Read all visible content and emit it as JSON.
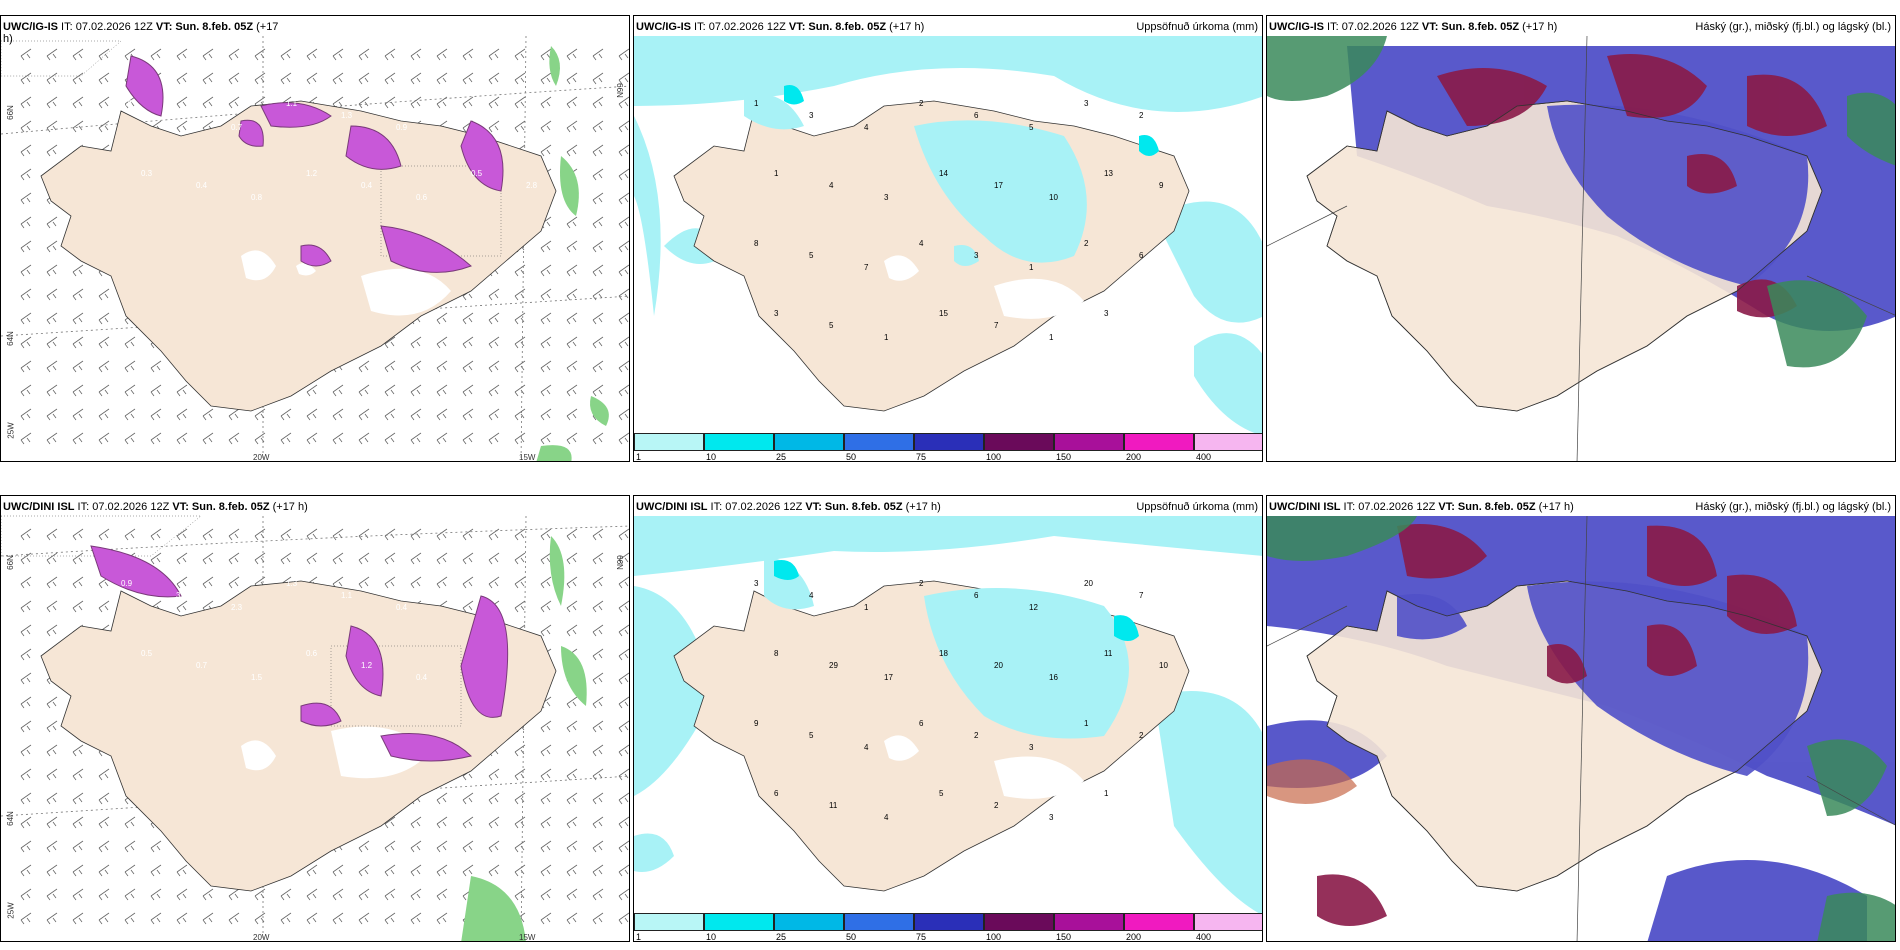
{
  "panels": {
    "top_left": {
      "title_model": "UWC/IG-IS",
      "title_rest": " IT: 07.02.2026 12Z ",
      "title_vt": "VT: Sun. 8.feb. 05Z",
      "title_lead": " (+17",
      "title_wrap": "h)",
      "axis_labels": {
        "lat_66_left": "66N",
        "lat_66_right": "66N",
        "lat_64_left": "64N",
        "lon_25": "25W",
        "lon_20": "20W",
        "lon_15": "15W"
      },
      "values": [
        "0.6",
        "0.9",
        "0.7",
        "1.1",
        "1.3",
        "0.9",
        "0.4",
        "0.5",
        "0.3",
        "0.4",
        "0.8",
        "1.2",
        "0.4",
        "0.6",
        "0.5",
        "2.8"
      ]
    },
    "top_middle": {
      "title_model": "UWC/IG-IS",
      "title_rest": " IT: 07.02.2026 12Z ",
      "title_vt": "VT: Sun. 8.feb. 05Z",
      "title_lead": " (+17 h)",
      "title_right": "Uppsöfnuð úrkoma (mm)",
      "values": [
        "1",
        "3",
        "4",
        "2",
        "6",
        "5",
        "3",
        "2",
        "1",
        "4",
        "3",
        "14",
        "17",
        "10",
        "13",
        "9",
        "8",
        "5",
        "7",
        "4",
        "3",
        "1",
        "2",
        "6",
        "3",
        "5",
        "1",
        "15",
        "7",
        "1",
        "3"
      ]
    },
    "top_right": {
      "title_model": "UWC/IG-IS",
      "title_rest": " IT: 07.02.2026 12Z ",
      "title_vt": "VT: Sun. 8.feb. 05Z",
      "title_lead": " (+17 h)",
      "title_right": "Háský (gr.), miðský (fj.bl.) og lágský (bl.)"
    },
    "bottom_left": {
      "title_model": "UWC/DINI ISL",
      "title_rest": " IT: 07.02.2026 12Z ",
      "title_vt": "VT: Sun. 8.feb. 05Z",
      "title_lead": " (+17 h)",
      "axis_labels": {
        "lat_66_left": "66N",
        "lat_66_right": "66N",
        "lat_64_left": "64N",
        "lon_25": "25W",
        "lon_20": "20W",
        "lon_15": "15W"
      },
      "values": [
        "0.9",
        "3.0",
        "2.3",
        "1.3",
        "1.1",
        "0.4",
        "0.2",
        "0.3",
        "0.5",
        "0.7",
        "1.5",
        "0.6",
        "1.2",
        "0.4"
      ]
    },
    "bottom_middle": {
      "title_model": "UWC/DINI ISL",
      "title_rest": " IT: 07.02.2026 12Z ",
      "title_vt": "VT: Sun. 8.feb. 05Z",
      "title_lead": " (+17 h)",
      "title_right": "Uppsöfnuð úrkoma (mm)",
      "values": [
        "3",
        "4",
        "1",
        "2",
        "6",
        "12",
        "20",
        "7",
        "8",
        "29",
        "17",
        "18",
        "20",
        "16",
        "11",
        "10",
        "9",
        "5",
        "4",
        "6",
        "2",
        "3",
        "1",
        "2",
        "6",
        "11",
        "4",
        "5",
        "2",
        "3",
        "1"
      ]
    },
    "bottom_right": {
      "title_model": "UWC/DINI ISL",
      "title_rest": " IT: 07.02.2026 12Z ",
      "title_vt": "VT: Sun. 8.feb. 05Z",
      "title_lead": " (+17 h)",
      "title_right": "Háský (gr.), miðský (fj.bl.) og lágský (bl.)"
    }
  },
  "colorbar": {
    "ticks": [
      "1",
      "10",
      "25",
      "50",
      "75",
      "100",
      "150",
      "200",
      "400"
    ],
    "colors": [
      "#b8f6f6",
      "#00e8ee",
      "#00b8e6",
      "#2f6fe6",
      "#2a2fb8",
      "#6a0a5a",
      "#a8109a",
      "#f01ac0",
      "#f6b6f0"
    ]
  },
  "colors": {
    "land": "#f6e6d6",
    "precip_light": "#a8f2f6",
    "snow_purple": "#c858d8",
    "snow_dark": "#7a3a7a",
    "green": "#88d488",
    "cloud_high": "#3a8a5a",
    "cloud_mid": "#8a1a48",
    "cloud_low": "#5050c8"
  }
}
